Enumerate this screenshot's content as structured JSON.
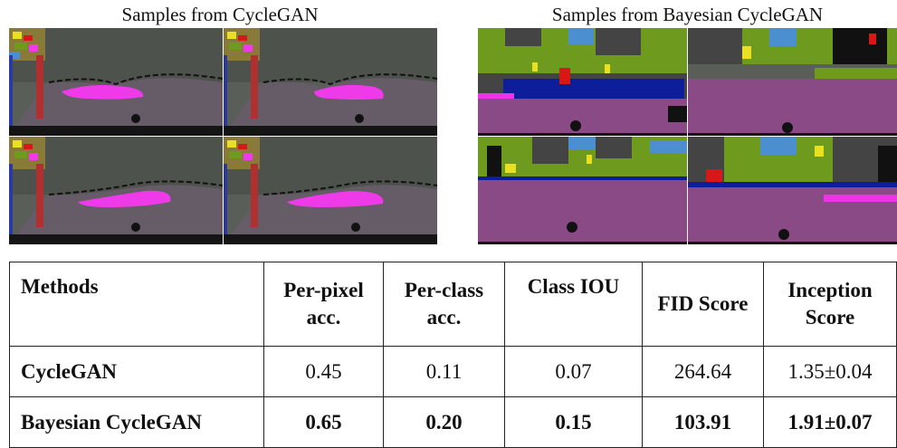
{
  "figure": {
    "left_caption": "Samples from CycleGAN",
    "right_caption": "Samples from Bayesian CycleGAN"
  },
  "table": {
    "headers": {
      "methods": "Methods",
      "per_pixel": "Per-pixel acc.",
      "per_class": "Per-class acc.",
      "class_iou": "Class IOU",
      "fid": "FID Score",
      "inception": "Inception Score"
    },
    "rows": [
      {
        "method": "CycleGAN",
        "per_pixel": "0.45",
        "per_class": "0.11",
        "class_iou": "0.07",
        "fid": "264.64",
        "inception": "1.35±0.04"
      },
      {
        "method": "Bayesian CycleGAN",
        "per_pixel": "0.65",
        "per_class": "0.20",
        "class_iou": "0.15",
        "fid": "103.91",
        "inception": "1.91±0.07"
      }
    ]
  },
  "colors": {
    "road": "#8a4a86",
    "vegetation": "#6e9a1e",
    "sky": "#4c8fd0",
    "building": "#444444",
    "car": "#0c1e9a",
    "sidewalk": "#f032e8",
    "person": "#d81818",
    "sign": "#e8e020",
    "collapsed_bg": "#5a5e58",
    "collapsed_pink": "#ee3ae8"
  }
}
